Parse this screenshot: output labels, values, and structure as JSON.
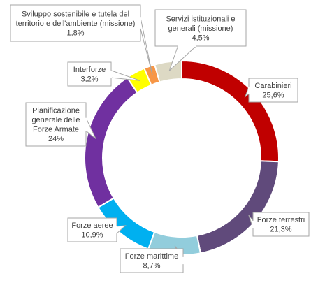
{
  "chart_data": {
    "type": "pie",
    "variant": "donut",
    "title": "",
    "slices": [
      {
        "name": "Carabinieri",
        "value": 25.6,
        "label": "25,6%",
        "color": "#C00000"
      },
      {
        "name": "Forze terrestri",
        "value": 21.3,
        "label": "21,3%",
        "color": "#604A7B"
      },
      {
        "name": "Forze marittime",
        "value": 8.7,
        "label": "8,7%",
        "color": "#92CDDC"
      },
      {
        "name": "Forze aeree",
        "value": 10.9,
        "label": "10,9%",
        "color": "#00B0F0"
      },
      {
        "name": "Pianificazione generale delle Forze Armate",
        "value": 24.0,
        "label": "24%",
        "color": "#7030A0"
      },
      {
        "name": "Interforze",
        "value": 3.2,
        "label": "3,2%",
        "color": "#FFFF00"
      },
      {
        "name": "Sviluppo sostenibile e tutela del territorio e dell'ambiente (missione)",
        "value": 1.8,
        "label": "1,8%",
        "color": "#F79646"
      },
      {
        "name": "Servizi istituzionali e generali (missione)",
        "value": 4.5,
        "label": "4,5%",
        "color": "#DDD9C4"
      }
    ],
    "legend": "none",
    "callouts": [
      {
        "lines": [
          "Carabinieri",
          "25,6%"
        ]
      },
      {
        "lines": [
          "Forze terrestri",
          "21,3%"
        ]
      },
      {
        "lines": [
          "Forze marittime",
          "8,7%"
        ]
      },
      {
        "lines": [
          "Forze aeree",
          "10,9%"
        ]
      },
      {
        "lines": [
          "Pianificazione",
          "generale delle",
          "Forze Armate",
          "24%"
        ]
      },
      {
        "lines": [
          "Interforze",
          "3,2%"
        ]
      },
      {
        "lines": [
          "Sviluppo sostenibile e tutela del",
          "territorio e dell'ambiente (missione)",
          "1,8%"
        ]
      },
      {
        "lines": [
          "Servizi istituzionali e",
          "generali (missione)",
          "4,5%"
        ]
      }
    ]
  }
}
